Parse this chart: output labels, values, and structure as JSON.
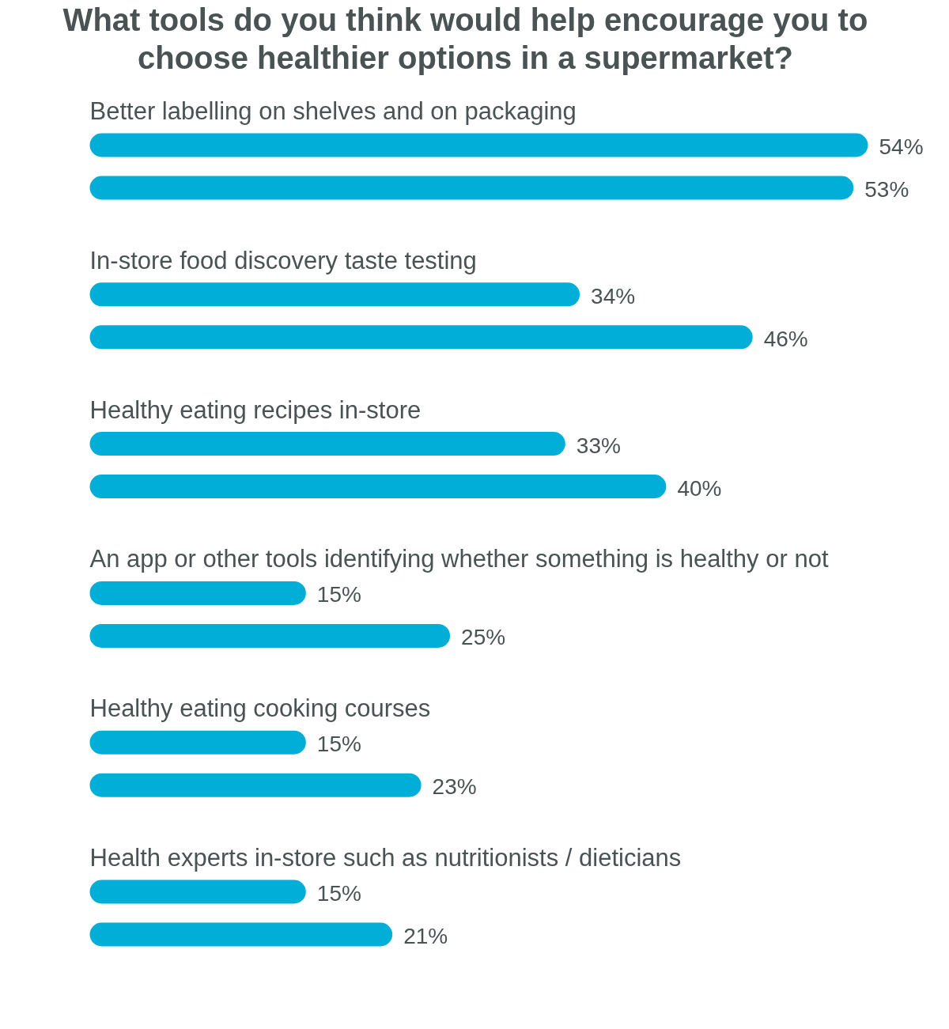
{
  "chart_data": {
    "type": "bar",
    "orientation": "horizontal",
    "title": "What tools do you think would help encourage you to choose healthier options in a supermarket?",
    "categories": [
      "Better labelling on shelves and on packaging",
      "In-store food discovery taste testing",
      "Healthy eating recipes in-store",
      "An app or other tools identifying whether something is healthy or not",
      "Healthy eating cooking courses",
      "Health experts in-store such as nutritionists / dieticians"
    ],
    "series": [
      {
        "color": "#00aed8",
        "values": [
          54,
          34,
          33,
          15,
          15,
          15
        ],
        "value_labels": [
          "54%",
          "34%",
          "33%",
          "15%",
          "15%",
          "15%"
        ]
      },
      {
        "color": "#00aed8",
        "values": [
          53,
          46,
          40,
          25,
          23,
          21
        ],
        "value_labels": [
          "53%",
          "46%",
          "40%",
          "25%",
          "23%",
          "21%"
        ]
      }
    ]
  }
}
